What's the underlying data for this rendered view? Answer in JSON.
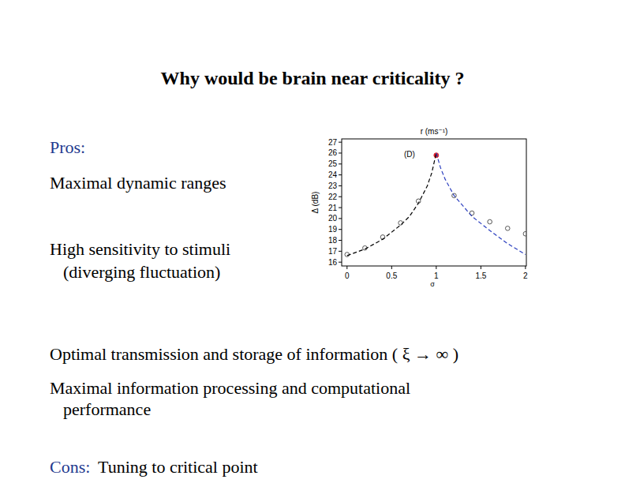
{
  "title": "Why would be brain near criticality ?",
  "pros": {
    "label": "Pros:",
    "items": [
      [
        "Maximal dynamic ranges"
      ],
      [
        "High sensitivity to stimuli",
        "(diverging fluctuation)"
      ],
      [
        "Optimal transmission and storage of information ( ξ → ∞ )"
      ],
      [
        "Maximal information processing and computational",
        "performance"
      ]
    ]
  },
  "cons": {
    "label": "Cons:",
    "text": "Tuning to critical point"
  },
  "chart_data": {
    "type": "scatter",
    "title": "r (ms⁻¹)",
    "x_label": "σ",
    "y_label": "Δ (dB)",
    "annotation": "(D)",
    "xlim": [
      -0.06,
      2.01
    ],
    "ylim": [
      15.65,
      27.3
    ],
    "xticks": [
      0,
      0.5,
      1,
      1.5,
      2
    ],
    "yticks": [
      16,
      17,
      18,
      19,
      20,
      21,
      22,
      23,
      24,
      25,
      26,
      27
    ],
    "series": [
      {
        "type": "scatter",
        "marker": "open_circle",
        "color": "#444444",
        "x": [
          0,
          0.2,
          0.4,
          0.6,
          0.8,
          1.2,
          1.4,
          1.6,
          1.8,
          2.0
        ],
        "values": [
          16.7,
          17.3,
          18.3,
          19.6,
          21.6,
          22.1,
          20.5,
          19.7,
          19.1,
          18.6
        ]
      },
      {
        "type": "scatter",
        "marker": "filled_circle",
        "color": "#e0202a",
        "x": [
          1.0
        ],
        "values": [
          25.8
        ]
      },
      {
        "type": "line",
        "line_style": "dashed",
        "color": "#000000",
        "x": [
          0,
          0.2,
          0.4,
          0.6,
          0.7,
          0.8,
          0.9,
          0.95,
          1.0
        ],
        "values": [
          16.6,
          17.2,
          18.1,
          19.4,
          20.2,
          21.4,
          23.0,
          24.2,
          26.0
        ]
      },
      {
        "type": "line",
        "line_style": "dashed",
        "color": "#2b3fbf",
        "x": [
          1.0,
          1.05,
          1.1,
          1.2,
          1.4,
          1.6,
          1.8,
          2.0
        ],
        "values": [
          26.0,
          24.6,
          23.6,
          22.1,
          20.2,
          18.9,
          17.7,
          16.7
        ]
      }
    ]
  }
}
